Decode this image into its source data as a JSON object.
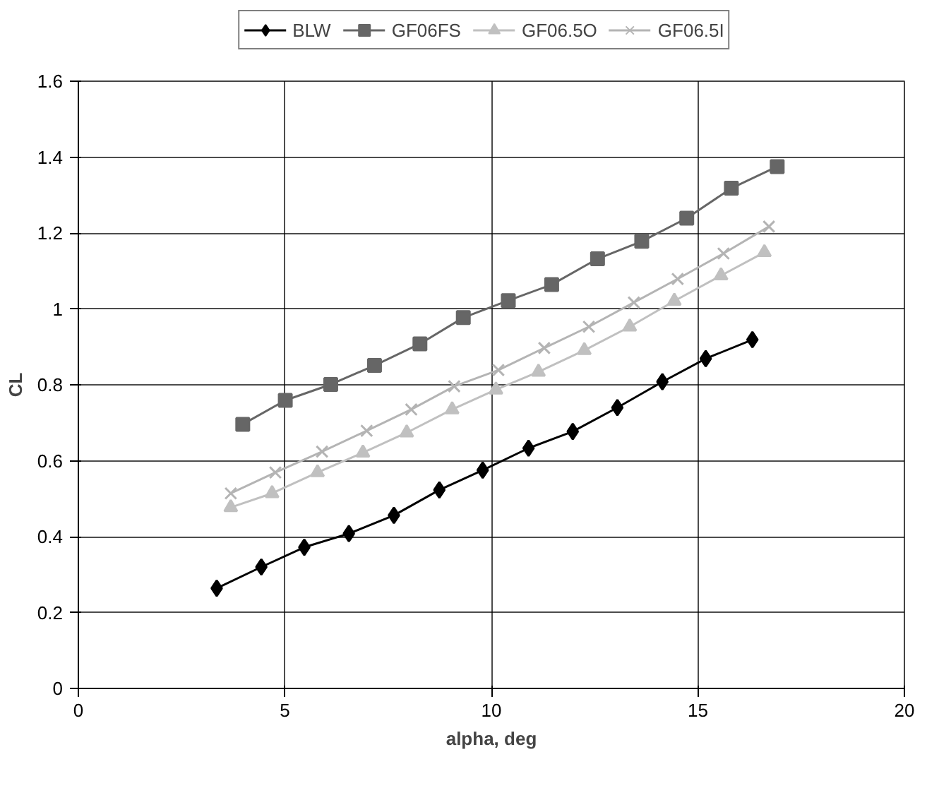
{
  "chart_data": {
    "type": "line",
    "xlabel": "alpha, deg",
    "ylabel": "CL",
    "xlim": [
      0,
      20
    ],
    "xticks": [
      0,
      5,
      10,
      15,
      20
    ],
    "ylim": [
      0,
      1.6
    ],
    "yticks": [
      0,
      0.2,
      0.4,
      0.6,
      0.8,
      1,
      1.2,
      1.4,
      1.6
    ],
    "grid": true,
    "legend": "top",
    "line_style": "solid",
    "series": [
      {
        "name": "BLW",
        "color": "#000000",
        "marker": "diamond",
        "x": [
          3.35,
          4.43,
          5.47,
          6.55,
          7.64,
          8.74,
          9.79,
          10.9,
          11.97,
          13.05,
          14.14,
          15.19,
          16.32
        ],
        "values": [
          0.264,
          0.32,
          0.372,
          0.408,
          0.456,
          0.523,
          0.575,
          0.633,
          0.677,
          0.74,
          0.808,
          0.869,
          0.919
        ]
      },
      {
        "name": "GF06FS",
        "color": "#666666",
        "marker": "square",
        "x": [
          3.98,
          5.01,
          6.11,
          7.17,
          8.27,
          9.32,
          10.41,
          11.46,
          12.57,
          13.64,
          14.73,
          15.81,
          16.92
        ],
        "values": [
          0.696,
          0.759,
          0.801,
          0.851,
          0.908,
          0.977,
          1.022,
          1.064,
          1.132,
          1.178,
          1.239,
          1.318,
          1.375
        ]
      },
      {
        "name": "GF06.5O",
        "color": "#c0c0c0",
        "marker": "triangle",
        "x": [
          3.69,
          4.69,
          5.79,
          6.89,
          7.95,
          9.05,
          10.11,
          11.14,
          12.25,
          13.35,
          14.43,
          15.56,
          16.61
        ],
        "values": [
          0.477,
          0.514,
          0.569,
          0.621,
          0.674,
          0.735,
          0.787,
          0.834,
          0.891,
          0.953,
          1.021,
          1.088,
          1.149
        ]
      },
      {
        "name": "GF06.5I",
        "color": "#b4b4b4",
        "marker": "cross",
        "x": [
          3.69,
          4.77,
          5.9,
          6.98,
          8.06,
          9.1,
          10.17,
          11.28,
          12.36,
          13.45,
          14.51,
          15.62,
          16.72
        ],
        "values": [
          0.514,
          0.569,
          0.624,
          0.679,
          0.735,
          0.796,
          0.839,
          0.897,
          0.953,
          1.017,
          1.079,
          1.146,
          1.217
        ]
      }
    ]
  }
}
